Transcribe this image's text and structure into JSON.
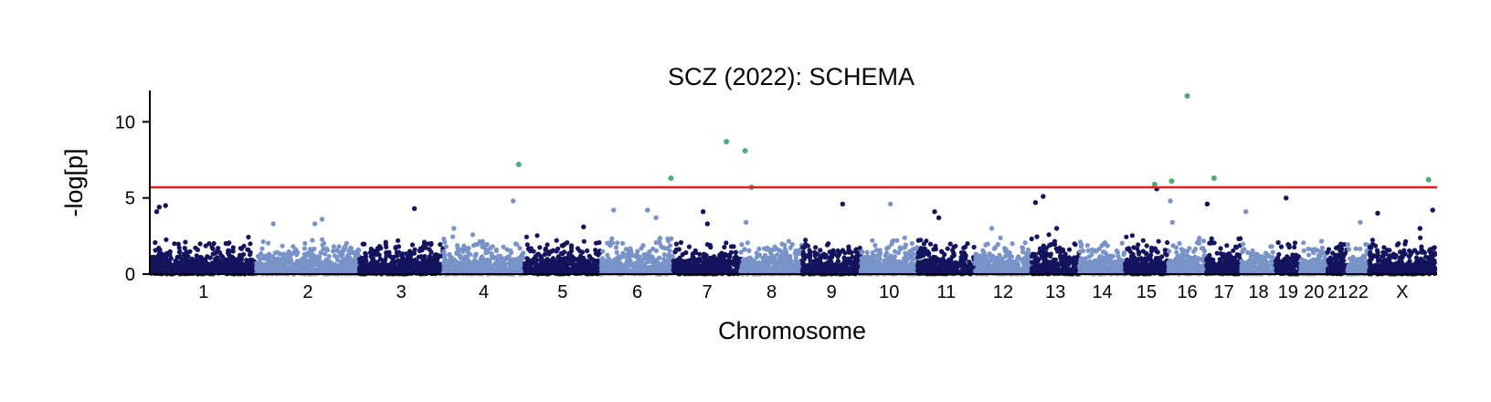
{
  "chart_data": {
    "type": "scatter",
    "title": "SCZ (2022): SCHEMA",
    "xlabel": "Chromosome",
    "ylabel": "-log[p]",
    "ylim": [
      0,
      12
    ],
    "y_ticks": [
      0,
      5,
      10
    ],
    "threshold": 5.7,
    "colors": {
      "odd_chromosome": "#14145e",
      "even_chromosome": "#7893c8",
      "significant": "#4caf72",
      "threshold_line": "#e81c1c",
      "axis": "#000000"
    },
    "chromosomes": [
      {
        "label": "1",
        "size": 249
      },
      {
        "label": "2",
        "size": 243
      },
      {
        "label": "3",
        "size": 198
      },
      {
        "label": "4",
        "size": 191
      },
      {
        "label": "5",
        "size": 181
      },
      {
        "label": "6",
        "size": 171
      },
      {
        "label": "7",
        "size": 159
      },
      {
        "label": "8",
        "size": 145
      },
      {
        "label": "9",
        "size": 138
      },
      {
        "label": "10",
        "size": 134
      },
      {
        "label": "11",
        "size": 135
      },
      {
        "label": "12",
        "size": 133
      },
      {
        "label": "13",
        "size": 114
      },
      {
        "label": "14",
        "size": 107
      },
      {
        "label": "15",
        "size": 102
      },
      {
        "label": "16",
        "size": 90
      },
      {
        "label": "17",
        "size": 83
      },
      {
        "label": "18",
        "size": 80
      },
      {
        "label": "19",
        "size": 59
      },
      {
        "label": "20",
        "size": 64
      },
      {
        "label": "21",
        "size": 47
      },
      {
        "label": "22",
        "size": 51
      },
      {
        "label": "X",
        "size": 156
      }
    ],
    "background_density": {
      "points_per_mb": 2.6,
      "typical_max": 1.9
    },
    "notable_points": [
      {
        "chr": "1",
        "pos": 20,
        "y": 4.4
      },
      {
        "chr": "1",
        "pos": 35,
        "y": 4.5
      },
      {
        "chr": "1",
        "pos": 14,
        "y": 4.1
      },
      {
        "chr": "2",
        "pos": 40,
        "y": 3.3
      },
      {
        "chr": "2",
        "pos": 155,
        "y": 3.6
      },
      {
        "chr": "2",
        "pos": 138,
        "y": 3.3
      },
      {
        "chr": "3",
        "pos": 130,
        "y": 4.3
      },
      {
        "chr": "4",
        "pos": 165,
        "y": 4.8
      },
      {
        "chr": "4",
        "pos": 25,
        "y": 3.0
      },
      {
        "chr": "5",
        "pos": 140,
        "y": 3.1
      },
      {
        "chr": "6",
        "pos": 30,
        "y": 4.2
      },
      {
        "chr": "6",
        "pos": 110,
        "y": 4.2
      },
      {
        "chr": "6",
        "pos": 130,
        "y": 3.7
      },
      {
        "chr": "7",
        "pos": 70,
        "y": 4.1
      },
      {
        "chr": "7",
        "pos": 80,
        "y": 3.3
      },
      {
        "chr": "8",
        "pos": 12,
        "y": 3.4
      },
      {
        "chr": "9",
        "pos": 95,
        "y": 4.6
      },
      {
        "chr": "10",
        "pos": 70,
        "y": 4.6
      },
      {
        "chr": "11",
        "pos": 40,
        "y": 4.1
      },
      {
        "chr": "11",
        "pos": 50,
        "y": 3.7
      },
      {
        "chr": "12",
        "pos": 40,
        "y": 3.0
      },
      {
        "chr": "13",
        "pos": 10,
        "y": 4.7
      },
      {
        "chr": "13",
        "pos": 28,
        "y": 5.1
      },
      {
        "chr": "13",
        "pos": 60,
        "y": 3.0
      },
      {
        "chr": "15",
        "pos": 75,
        "y": 5.6
      },
      {
        "chr": "16",
        "pos": 5,
        "y": 4.8
      },
      {
        "chr": "16",
        "pos": 10,
        "y": 3.4
      },
      {
        "chr": "17",
        "pos": 2,
        "y": 4.6
      },
      {
        "chr": "18",
        "pos": 10,
        "y": 4.1
      },
      {
        "chr": "19",
        "pos": 25,
        "y": 5.0
      },
      {
        "chr": "22",
        "pos": 30,
        "y": 3.4
      },
      {
        "chr": "X",
        "pos": 20,
        "y": 4.0
      },
      {
        "chr": "X",
        "pos": 120,
        "y": 3.0
      },
      {
        "chr": "X",
        "pos": 150,
        "y": 4.2
      }
    ],
    "significant_points": [
      {
        "chr": "4",
        "pos": 178,
        "y": 7.2
      },
      {
        "chr": "6",
        "pos": 165,
        "y": 6.3
      },
      {
        "chr": "7",
        "pos": 125,
        "y": 8.7
      },
      {
        "chr": "8",
        "pos": 10,
        "y": 8.1
      },
      {
        "chr": "8",
        "pos": 25,
        "y": 5.7
      },
      {
        "chr": "15",
        "pos": 70,
        "y": 5.9
      },
      {
        "chr": "16",
        "pos": 8,
        "y": 6.1
      },
      {
        "chr": "16",
        "pos": 45,
        "y": 11.7
      },
      {
        "chr": "17",
        "pos": 18,
        "y": 6.3
      },
      {
        "chr": "X",
        "pos": 140,
        "y": 6.2
      }
    ]
  }
}
